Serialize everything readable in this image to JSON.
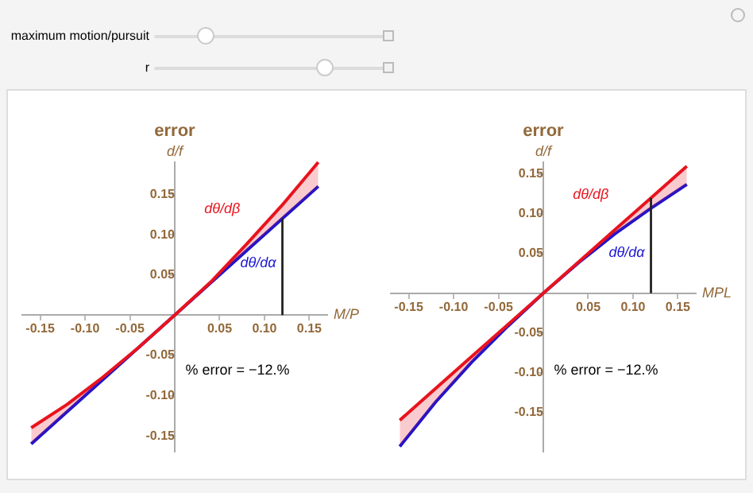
{
  "chart_data": [
    {
      "type": "other",
      "annotations": [
        "maximum motion/pursuit",
        "r"
      ]
    },
    {
      "type": "line",
      "title": "error",
      "ylabel": "d/f",
      "xlabel": "M/P",
      "legend": false,
      "grid": false,
      "marker": "none",
      "line_style": "solid",
      "x": [
        -0.16,
        -0.12,
        -0.08,
        -0.04,
        0,
        0.04,
        0.08,
        0.12,
        0.16
      ],
      "series": [
        {
          "name": "dθ/dβ",
          "color": "#e8141e",
          "values": [
            -0.14,
            -0.111,
            -0.077,
            -0.04,
            0,
            0.041,
            0.088,
            0.137,
            0.19
          ],
          "lower": [
            -0.16,
            -0.12,
            -0.08,
            -0.04,
            0,
            0.04,
            0.08,
            0.12,
            0.16
          ],
          "upper": [
            -0.14,
            -0.111,
            -0.077,
            -0.04,
            0,
            0.041,
            0.088,
            0.137,
            0.19
          ]
        },
        {
          "name": "dθ/dα",
          "color": "#1a14d2",
          "values": [
            -0.16,
            -0.12,
            -0.08,
            -0.04,
            0,
            0.04,
            0.08,
            0.12,
            0.16
          ]
        }
      ],
      "ref_lines": [
        {
          "axis": "x",
          "value": 0.12,
          "color": "#222222"
        }
      ],
      "xlim": [
        -0.17,
        0.17
      ],
      "ylim": [
        -0.17,
        0.19
      ],
      "xticks": [
        {
          "value": -0.15,
          "label": "-0.15"
        },
        {
          "value": -0.1,
          "label": "-0.10"
        },
        {
          "value": -0.05,
          "label": "-0.05"
        },
        {
          "value": 0.05,
          "label": "0.05"
        },
        {
          "value": 0.1,
          "label": "0.10"
        },
        {
          "value": 0.15,
          "label": "0.15"
        }
      ],
      "yticks": [
        {
          "value": -0.15,
          "label": "-0.15"
        },
        {
          "value": -0.1,
          "label": "-0.10"
        },
        {
          "value": -0.05,
          "label": "-0.05"
        },
        {
          "value": 0.05,
          "label": "0.05"
        },
        {
          "value": 0.1,
          "label": "0.10"
        },
        {
          "value": 0.15,
          "label": "0.15"
        }
      ],
      "annotations": [
        "% error = −12.%"
      ]
    },
    {
      "type": "line",
      "title": "error",
      "ylabel": "d/f",
      "xlabel": "MPL",
      "legend": false,
      "grid": false,
      "marker": "none",
      "line_style": "solid",
      "x": [
        -0.16,
        -0.12,
        -0.08,
        -0.04,
        0,
        0.04,
        0.08,
        0.12,
        0.16
      ],
      "series": [
        {
          "name": "dθ/dβ",
          "color": "#e8141e",
          "values": [
            -0.16,
            -0.12,
            -0.08,
            -0.04,
            0,
            0.04,
            0.08,
            0.12,
            0.16
          ],
          "lower": [
            -0.193,
            -0.137,
            -0.087,
            -0.042,
            0,
            0.039,
            0.075,
            0.107,
            0.137
          ],
          "upper": [
            -0.16,
            -0.12,
            -0.08,
            -0.04,
            0,
            0.04,
            0.08,
            0.12,
            0.16
          ]
        },
        {
          "name": "dθ/dα",
          "color": "#1a14d2",
          "values": [
            -0.193,
            -0.137,
            -0.087,
            -0.042,
            0,
            0.039,
            0.075,
            0.107,
            0.137
          ]
        }
      ],
      "ref_lines": [
        {
          "axis": "x",
          "value": 0.12,
          "color": "#222222"
        }
      ],
      "xlim": [
        -0.17,
        0.17
      ],
      "ylim": [
        -0.2,
        0.165
      ],
      "xticks": [
        {
          "value": -0.15,
          "label": "-0.15"
        },
        {
          "value": -0.1,
          "label": "-0.10"
        },
        {
          "value": -0.05,
          "label": "-0.05"
        },
        {
          "value": 0.05,
          "label": "0.05"
        },
        {
          "value": 0.1,
          "label": "0.10"
        },
        {
          "value": 0.15,
          "label": "0.15"
        }
      ],
      "yticks": [
        {
          "value": -0.15,
          "label": "-0.15"
        },
        {
          "value": -0.1,
          "label": "-0.10"
        },
        {
          "value": -0.05,
          "label": "-0.05"
        },
        {
          "value": 0.05,
          "label": "0.05"
        },
        {
          "value": 0.1,
          "label": "0.10"
        },
        {
          "value": 0.15,
          "label": "0.15"
        }
      ],
      "annotations": [
        "% error = −12.%"
      ]
    }
  ]
}
